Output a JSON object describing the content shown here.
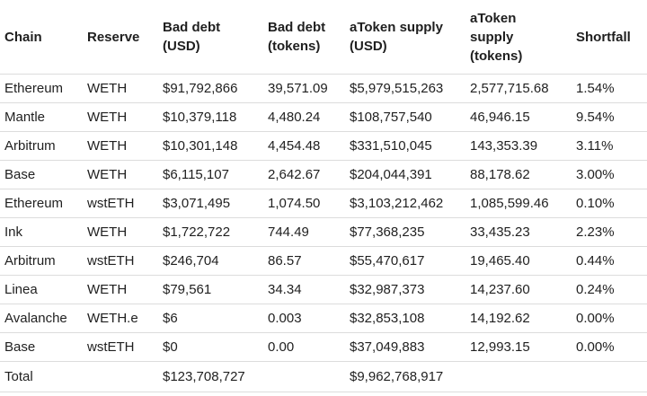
{
  "table": {
    "headers": [
      "Chain",
      "Reserve",
      "Bad debt\n(USD)",
      "Bad debt\n(tokens)",
      "aToken supply\n(USD)",
      "aToken\nsupply\n(tokens)",
      "Shortfall"
    ],
    "rows": [
      [
        "Ethereum",
        "WETH",
        "$91,792,866",
        "39,571.09",
        "$5,979,515,263",
        "2,577,715.68",
        "1.54%"
      ],
      [
        "Mantle",
        "WETH",
        "$10,379,118",
        "4,480.24",
        "$108,757,540",
        "46,946.15",
        "9.54%"
      ],
      [
        "Arbitrum",
        "WETH",
        "$10,301,148",
        "4,454.48",
        "$331,510,045",
        "143,353.39",
        "3.11%"
      ],
      [
        "Base",
        "WETH",
        "$6,115,107",
        "2,642.67",
        "$204,044,391",
        "88,178.62",
        "3.00%"
      ],
      [
        "Ethereum",
        "wstETH",
        "$3,071,495",
        "1,074.50",
        "$3,103,212,462",
        "1,085,599.46",
        "0.10%"
      ],
      [
        "Ink",
        "WETH",
        "$1,722,722",
        "744.49",
        "$77,368,235",
        "33,435.23",
        "2.23%"
      ],
      [
        "Arbitrum",
        "wstETH",
        "$246,704",
        "86.57",
        "$55,470,617",
        "19,465.40",
        "0.44%"
      ],
      [
        "Linea",
        "WETH",
        "$79,561",
        "34.34",
        "$32,987,373",
        "14,237.60",
        "0.24%"
      ],
      [
        "Avalanche",
        "WETH.e",
        "$6",
        "0.003",
        "$32,853,108",
        "14,192.62",
        "0.00%"
      ],
      [
        "Base",
        "wstETH",
        "$0",
        "0.00",
        "$37,049,883",
        "12,993.15",
        "0.00%"
      ]
    ],
    "total": [
      "Total",
      "",
      "$123,708,727",
      "",
      "$9,962,768,917",
      "",
      ""
    ]
  }
}
